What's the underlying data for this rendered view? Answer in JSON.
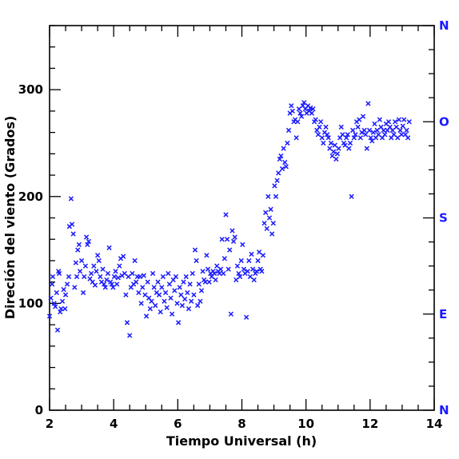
{
  "chart_data": {
    "type": "scatter",
    "title": "",
    "xlabel": "Tiempo Universal (h)",
    "ylabel": "Direción del viento (Grados)",
    "xlim": [
      2,
      14
    ],
    "ylim": [
      0,
      360
    ],
    "x_ticks": [
      "2",
      "4",
      "6",
      "8",
      "10",
      "12",
      "14"
    ],
    "y_ticks": [
      "0",
      "100",
      "200",
      "300"
    ],
    "right_axis_labels": [
      "N",
      "E",
      "S",
      "O",
      "N"
    ],
    "right_axis_values": [
      0,
      90,
      180,
      270,
      360
    ],
    "marker": "x",
    "colors": {
      "points": "#1a1aff",
      "right_axis": "#1a1aff",
      "axes": "#000000"
    },
    "grid": false,
    "legend": "none",
    "series": [
      {
        "values": [
          [
            2.0,
            88
          ],
          [
            2.04,
            105
          ],
          [
            2.08,
            118
          ],
          [
            2.1,
            125
          ],
          [
            2.14,
            100
          ],
          [
            2.18,
            97
          ],
          [
            2.22,
            110
          ],
          [
            2.25,
            75
          ],
          [
            2.28,
            130
          ],
          [
            2.3,
            128
          ],
          [
            2.33,
            92
          ],
          [
            2.36,
            95
          ],
          [
            2.4,
            102
          ],
          [
            2.44,
            113
          ],
          [
            2.48,
            95
          ],
          [
            2.5,
            108
          ],
          [
            2.55,
            118
          ],
          [
            2.6,
            125
          ],
          [
            2.62,
            172
          ],
          [
            2.67,
            198
          ],
          [
            2.7,
            174
          ],
          [
            2.74,
            165
          ],
          [
            2.78,
            115
          ],
          [
            2.82,
            138
          ],
          [
            2.85,
            125
          ],
          [
            2.88,
            150
          ],
          [
            2.92,
            155
          ],
          [
            2.95,
            130
          ],
          [
            3.0,
            140
          ],
          [
            3.05,
            110
          ],
          [
            3.08,
            125
          ],
          [
            3.12,
            135
          ],
          [
            3.15,
            162
          ],
          [
            3.18,
            155
          ],
          [
            3.22,
            158
          ],
          [
            3.26,
            123
          ],
          [
            3.3,
            128
          ],
          [
            3.34,
            120
          ],
          [
            3.38,
            135
          ],
          [
            3.42,
            117
          ],
          [
            3.46,
            130
          ],
          [
            3.5,
            145
          ],
          [
            3.54,
            140
          ],
          [
            3.58,
            125
          ],
          [
            3.62,
            120
          ],
          [
            3.66,
            132
          ],
          [
            3.7,
            118
          ],
          [
            3.74,
            115
          ],
          [
            3.78,
            122
          ],
          [
            3.82,
            128
          ],
          [
            3.86,
            152
          ],
          [
            3.9,
            120
          ],
          [
            3.94,
            118
          ],
          [
            3.98,
            115
          ],
          [
            4.02,
            125
          ],
          [
            4.06,
            130
          ],
          [
            4.1,
            118
          ],
          [
            4.14,
            124
          ],
          [
            4.18,
            135
          ],
          [
            4.22,
            142
          ],
          [
            4.26,
            126
          ],
          [
            4.3,
            144
          ],
          [
            4.34,
            128
          ],
          [
            4.38,
            108
          ],
          [
            4.42,
            82
          ],
          [
            4.46,
            125
          ],
          [
            4.5,
            70
          ],
          [
            4.54,
            115
          ],
          [
            4.58,
            128
          ],
          [
            4.62,
            118
          ],
          [
            4.66,
            140
          ],
          [
            4.7,
            120
          ],
          [
            4.74,
            125
          ],
          [
            4.78,
            110
          ],
          [
            4.82,
            125
          ],
          [
            4.86,
            100
          ],
          [
            4.9,
            115
          ],
          [
            4.94,
            126
          ],
          [
            4.98,
            108
          ],
          [
            5.02,
            88
          ],
          [
            5.06,
            120
          ],
          [
            5.1,
            105
          ],
          [
            5.14,
            95
          ],
          [
            5.18,
            102
          ],
          [
            5.22,
            128
          ],
          [
            5.26,
            115
          ],
          [
            5.3,
            98
          ],
          [
            5.34,
            110
          ],
          [
            5.38,
            120
          ],
          [
            5.42,
            108
          ],
          [
            5.46,
            92
          ],
          [
            5.5,
            115
          ],
          [
            5.54,
            125
          ],
          [
            5.58,
            102
          ],
          [
            5.62,
            110
          ],
          [
            5.66,
            96
          ],
          [
            5.7,
            128
          ],
          [
            5.74,
            118
          ],
          [
            5.78,
            105
          ],
          [
            5.82,
            90
          ],
          [
            5.86,
            122
          ],
          [
            5.9,
            112
          ],
          [
            5.94,
            125
          ],
          [
            5.98,
            100
          ],
          [
            6.02,
            82
          ],
          [
            6.06,
            115
          ],
          [
            6.1,
            108
          ],
          [
            6.14,
            98
          ],
          [
            6.18,
            120
          ],
          [
            6.22,
            104
          ],
          [
            6.26,
            125
          ],
          [
            6.3,
            110
          ],
          [
            6.34,
            95
          ],
          [
            6.38,
            118
          ],
          [
            6.42,
            102
          ],
          [
            6.46,
            128
          ],
          [
            6.5,
            108
          ],
          [
            6.54,
            150
          ],
          [
            6.58,
            140
          ],
          [
            6.62,
            98
          ],
          [
            6.66,
            118
          ],
          [
            6.7,
            102
          ],
          [
            6.74,
            112
          ],
          [
            6.78,
            130
          ],
          [
            6.82,
            122
          ],
          [
            6.86,
            120
          ],
          [
            6.9,
            145
          ],
          [
            6.94,
            132
          ],
          [
            6.98,
            120
          ],
          [
            7.02,
            128
          ],
          [
            7.06,
            125
          ],
          [
            7.1,
            130
          ],
          [
            7.14,
            128
          ],
          [
            7.18,
            122
          ],
          [
            7.22,
            135
          ],
          [
            7.26,
            130
          ],
          [
            7.3,
            128
          ],
          [
            7.34,
            132
          ],
          [
            7.38,
            160
          ],
          [
            7.42,
            128
          ],
          [
            7.46,
            142
          ],
          [
            7.5,
            183
          ],
          [
            7.54,
            160
          ],
          [
            7.58,
            132
          ],
          [
            7.62,
            150
          ],
          [
            7.66,
            90
          ],
          [
            7.7,
            168
          ],
          [
            7.74,
            158
          ],
          [
            7.78,
            162
          ],
          [
            7.82,
            122
          ],
          [
            7.86,
            135
          ],
          [
            7.9,
            128
          ],
          [
            7.94,
            125
          ],
          [
            7.98,
            140
          ],
          [
            8.02,
            155
          ],
          [
            8.06,
            132
          ],
          [
            8.1,
            128
          ],
          [
            8.14,
            87
          ],
          [
            8.18,
            130
          ],
          [
            8.22,
            140
          ],
          [
            8.26,
            125
          ],
          [
            8.3,
            146
          ],
          [
            8.34,
            132
          ],
          [
            8.38,
            122
          ],
          [
            8.42,
            128
          ],
          [
            8.46,
            130
          ],
          [
            8.5,
            140
          ],
          [
            8.54,
            148
          ],
          [
            8.58,
            132
          ],
          [
            8.62,
            130
          ],
          [
            8.66,
            145
          ],
          [
            8.7,
            175
          ],
          [
            8.74,
            185
          ],
          [
            8.78,
            170
          ],
          [
            8.82,
            200
          ],
          [
            8.86,
            180
          ],
          [
            8.9,
            188
          ],
          [
            8.94,
            165
          ],
          [
            8.98,
            175
          ],
          [
            9.02,
            210
          ],
          [
            9.06,
            200
          ],
          [
            9.1,
            215
          ],
          [
            9.14,
            222
          ],
          [
            9.18,
            235
          ],
          [
            9.22,
            238
          ],
          [
            9.26,
            226
          ],
          [
            9.3,
            245
          ],
          [
            9.34,
            232
          ],
          [
            9.38,
            228
          ],
          [
            9.42,
            250
          ],
          [
            9.46,
            262
          ],
          [
            9.5,
            278
          ],
          [
            9.54,
            285
          ],
          [
            9.58,
            280
          ],
          [
            9.62,
            270
          ],
          [
            9.66,
            272
          ],
          [
            9.7,
            255
          ],
          [
            9.74,
            270
          ],
          [
            9.78,
            282
          ],
          [
            9.82,
            278
          ],
          [
            9.86,
            275
          ],
          [
            9.9,
            285
          ],
          [
            9.94,
            288
          ],
          [
            9.98,
            282
          ],
          [
            10.02,
            278
          ],
          [
            10.06,
            285
          ],
          [
            10.1,
            280
          ],
          [
            10.14,
            283
          ],
          [
            10.18,
            278
          ],
          [
            10.22,
            282
          ],
          [
            10.26,
            270
          ],
          [
            10.3,
            272
          ],
          [
            10.34,
            262
          ],
          [
            10.38,
            258
          ],
          [
            10.42,
            265
          ],
          [
            10.46,
            270
          ],
          [
            10.5,
            255
          ],
          [
            10.54,
            250
          ],
          [
            10.58,
            260
          ],
          [
            10.62,
            265
          ],
          [
            10.66,
            258
          ],
          [
            10.7,
            255
          ],
          [
            10.74,
            245
          ],
          [
            10.78,
            250
          ],
          [
            10.82,
            238
          ],
          [
            10.86,
            242
          ],
          [
            10.9,
            248
          ],
          [
            10.94,
            235
          ],
          [
            10.98,
            240
          ],
          [
            11.02,
            245
          ],
          [
            11.06,
            255
          ],
          [
            11.1,
            265
          ],
          [
            11.14,
            258
          ],
          [
            11.18,
            250
          ],
          [
            11.22,
            248
          ],
          [
            11.26,
            255
          ],
          [
            11.3,
            258
          ],
          [
            11.34,
            245
          ],
          [
            11.38,
            250
          ],
          [
            11.42,
            200
          ],
          [
            11.46,
            262
          ],
          [
            11.5,
            255
          ],
          [
            11.54,
            258
          ],
          [
            11.58,
            270
          ],
          [
            11.62,
            265
          ],
          [
            11.66,
            272
          ],
          [
            11.7,
            255
          ],
          [
            11.74,
            260
          ],
          [
            11.78,
            275
          ],
          [
            11.82,
            262
          ],
          [
            11.86,
            258
          ],
          [
            11.9,
            245
          ],
          [
            11.94,
            287
          ],
          [
            11.98,
            262
          ],
          [
            12.02,
            255
          ],
          [
            12.06,
            252
          ],
          [
            12.1,
            260
          ],
          [
            12.14,
            268
          ],
          [
            12.18,
            255
          ],
          [
            12.22,
            262
          ],
          [
            12.26,
            258
          ],
          [
            12.3,
            272
          ],
          [
            12.34,
            265
          ],
          [
            12.38,
            255
          ],
          [
            12.42,
            262
          ],
          [
            12.46,
            258
          ],
          [
            12.5,
            268
          ],
          [
            12.54,
            262
          ],
          [
            12.58,
            270
          ],
          [
            12.62,
            265
          ],
          [
            12.66,
            255
          ],
          [
            12.7,
            262
          ],
          [
            12.74,
            258
          ],
          [
            12.78,
            270
          ],
          [
            12.82,
            265
          ],
          [
            12.86,
            255
          ],
          [
            12.9,
            272
          ],
          [
            12.94,
            262
          ],
          [
            12.98,
            258
          ],
          [
            13.02,
            266
          ],
          [
            13.06,
            272
          ],
          [
            13.1,
            258
          ],
          [
            13.14,
            262
          ],
          [
            13.18,
            255
          ],
          [
            13.22,
            270
          ]
        ]
      }
    ]
  }
}
